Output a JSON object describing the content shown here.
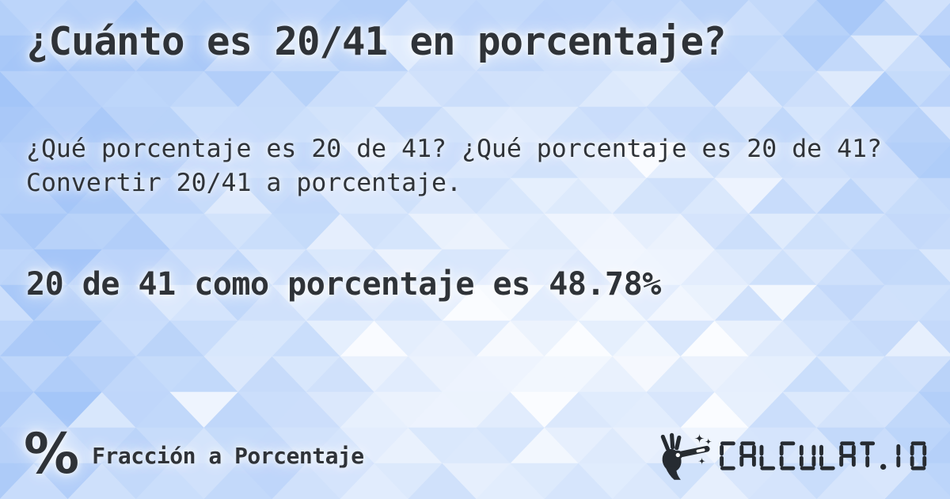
{
  "card": {
    "title": "¿Cuánto es 20/41 en porcentaje?",
    "description": "¿Qué porcentaje es 20 de 41? ¿Qué porcentaje es 20 de 41? Convertir 20/41 a porcentaje.",
    "result": "20 de 41 como porcentaje es 48.78%"
  },
  "footer": {
    "category": {
      "icon_glyph": "%",
      "label": "Fracción a Porcentaje"
    },
    "brand": {
      "icon": "magic-wand-hand-icon",
      "wordmark": "CALCULAT.IO"
    }
  },
  "colors": {
    "text": "#2f3338",
    "logo": "#262b31",
    "background_blue": "#a9ccf4",
    "background_highlight": "#f4f9ff"
  }
}
